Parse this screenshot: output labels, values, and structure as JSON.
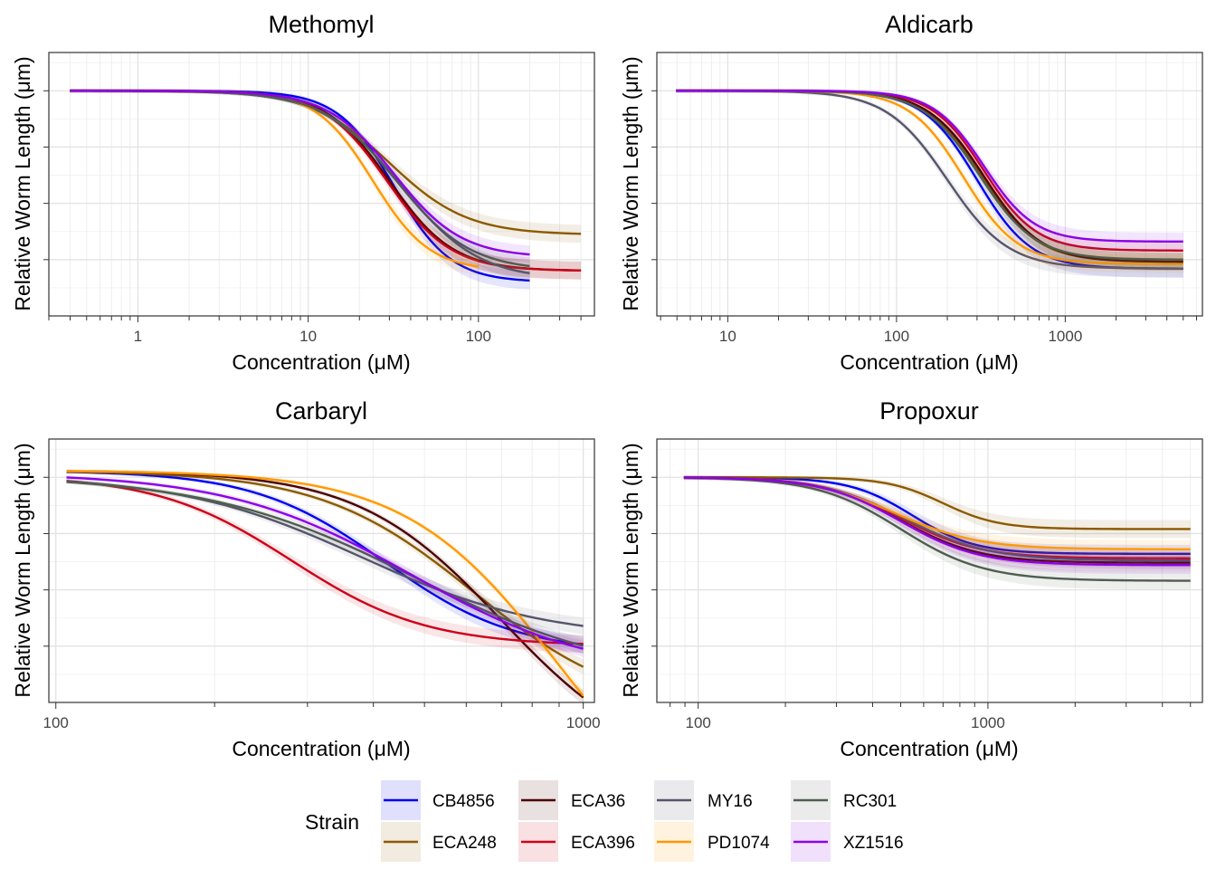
{
  "chart_data": {
    "type": "line",
    "legend": {
      "title": "Strain",
      "position": "bottom",
      "strains": [
        {
          "name": "CB4856",
          "color": "#0000ee"
        },
        {
          "name": "ECA248",
          "color": "#8b5a00"
        },
        {
          "name": "ECA36",
          "color": "#4a0000"
        },
        {
          "name": "ECA396",
          "color": "#cc0018"
        },
        {
          "name": "MY16",
          "color": "#55556b"
        },
        {
          "name": "PD1074",
          "color": "#ff9900"
        },
        {
          "name": "RC301",
          "color": "#4f5e4f"
        },
        {
          "name": "XZ1516",
          "color": "#8b00e8"
        }
      ]
    },
    "panels": [
      {
        "title": "Methomyl",
        "xlabel": "Concentration (μM)",
        "ylabel": "Relative Worm Length (μm)",
        "x_scale": "log10",
        "xlim": [
          0.3,
          480
        ],
        "ylim": [
          0,
          1.17
        ],
        "x_ticks": [
          1,
          10,
          100
        ],
        "x_tick_labels": [
          "1",
          "10",
          "100"
        ],
        "y_ticks": [
          0.25,
          0.5,
          0.75,
          1.0
        ],
        "curves": [
          {
            "strain": "CB4856",
            "top": 1,
            "bottom": 0.15,
            "ec50": 32,
            "hill": 2.6,
            "xmax": 200
          },
          {
            "strain": "ECA248",
            "top": 1,
            "bottom": 0.36,
            "ec50": 30,
            "hill": 1.9,
            "xmax": 400
          },
          {
            "strain": "ECA36",
            "top": 1,
            "bottom": 0.2,
            "ec50": 30,
            "hill": 2.3,
            "xmax": 400
          },
          {
            "strain": "ECA396",
            "top": 1,
            "bottom": 0.2,
            "ec50": 29,
            "hill": 2.3,
            "xmax": 400
          },
          {
            "strain": "MY16",
            "top": 1,
            "bottom": 0.16,
            "ec50": 35,
            "hill": 1.9,
            "xmax": 200
          },
          {
            "strain": "PD1074",
            "top": 1,
            "bottom": 0.2,
            "ec50": 24,
            "hill": 2.6,
            "xmax": 100
          },
          {
            "strain": "RC301",
            "top": 1,
            "bottom": 0.2,
            "ec50": 33,
            "hill": 2.0,
            "xmax": 200
          },
          {
            "strain": "XZ1516",
            "top": 1,
            "bottom": 0.26,
            "ec50": 32,
            "hill": 2.2,
            "xmax": 200
          }
        ]
      },
      {
        "title": "Aldicarb",
        "xlabel": "Concentration (μM)",
        "ylabel": "Relative Worm Length (μm)",
        "x_scale": "log10",
        "xlim": [
          3.8,
          6500
        ],
        "ylim": [
          0,
          1.17
        ],
        "x_ticks": [
          10,
          100,
          1000
        ],
        "x_tick_labels": [
          "10",
          "100",
          "1000"
        ],
        "y_ticks": [
          0.25,
          0.5,
          0.75,
          1.0
        ],
        "curves": [
          {
            "strain": "CB4856",
            "top": 1,
            "bottom": 0.21,
            "ec50": 300,
            "hill": 2.7,
            "xmax": 5000
          },
          {
            "strain": "ECA248",
            "top": 1,
            "bottom": 0.24,
            "ec50": 320,
            "hill": 2.6,
            "xmax": 5000
          },
          {
            "strain": "ECA36",
            "top": 1,
            "bottom": 0.24,
            "ec50": 330,
            "hill": 2.6,
            "xmax": 5000
          },
          {
            "strain": "ECA396",
            "top": 1,
            "bottom": 0.29,
            "ec50": 330,
            "hill": 2.8,
            "xmax": 5000
          },
          {
            "strain": "MY16",
            "top": 1,
            "bottom": 0.21,
            "ec50": 200,
            "hill": 2.4,
            "xmax": 5000
          },
          {
            "strain": "PD1074",
            "top": 1,
            "bottom": 0.23,
            "ec50": 250,
            "hill": 2.7,
            "xmax": 5000
          },
          {
            "strain": "RC301",
            "top": 1,
            "bottom": 0.25,
            "ec50": 310,
            "hill": 2.6,
            "xmax": 5000
          },
          {
            "strain": "XZ1516",
            "top": 1,
            "bottom": 0.33,
            "ec50": 330,
            "hill": 2.9,
            "xmax": 5000
          }
        ]
      },
      {
        "title": "Carbaryl",
        "xlabel": "Concentration (μM)",
        "ylabel": "Relative Worm Length (μm)",
        "x_scale": "log10",
        "xlim": [
          97,
          1050
        ],
        "ylim": [
          0,
          1.17
        ],
        "x_ticks": [
          100,
          1000
        ],
        "x_tick_labels": [
          "100",
          "1000"
        ],
        "y_ticks": [
          0.25,
          0.5,
          0.75,
          1.0
        ],
        "curves": [
          {
            "strain": "CB4856",
            "top": 1.03,
            "bottom": 0.22,
            "ec50": 420,
            "hill": 3.5,
            "xmax": 1000
          },
          {
            "strain": "ECA248",
            "top": 1.03,
            "bottom": -0.05,
            "ec50": 620,
            "hill": 3.0,
            "xmax": 1000
          },
          {
            "strain": "ECA36",
            "top": 1.03,
            "bottom": -0.3,
            "ec50": 700,
            "hill": 3.2,
            "xmax": 1000
          },
          {
            "strain": "ECA396",
            "top": 1.01,
            "bottom": 0.25,
            "ec50": 280,
            "hill": 3.4,
            "xmax": 1000
          },
          {
            "strain": "MY16",
            "top": 1.01,
            "bottom": 0.28,
            "ec50": 380,
            "hill": 2.5,
            "xmax": 1000
          },
          {
            "strain": "PD1074",
            "top": 1.03,
            "bottom": -0.7,
            "ec50": 900,
            "hill": 3.0,
            "xmax": 1000
          },
          {
            "strain": "RC301",
            "top": 1.01,
            "bottom": 0.1,
            "ec50": 480,
            "hill": 2.2,
            "xmax": 1000
          },
          {
            "strain": "XZ1516",
            "top": 1.02,
            "bottom": 0.12,
            "ec50": 470,
            "hill": 2.5,
            "xmax": 1000
          }
        ]
      },
      {
        "title": "Propoxur",
        "xlabel": "Concentration (μM)",
        "ylabel": "Relative Worm Length (μm)",
        "x_scale": "log10",
        "xlim": [
          72,
          5500
        ],
        "ylim": [
          0,
          1.17
        ],
        "x_ticks": [
          100,
          1000
        ],
        "x_tick_labels": [
          "100",
          "1000"
        ],
        "y_ticks": [
          0.25,
          0.5,
          0.75,
          1.0
        ],
        "curves": [
          {
            "strain": "CB4856",
            "top": 1,
            "bottom": 0.66,
            "ec50": 550,
            "hill": 4.0,
            "xmax": 5000
          },
          {
            "strain": "ECA248",
            "top": 1,
            "bottom": 0.77,
            "ec50": 700,
            "hill": 4.5,
            "xmax": 5000
          },
          {
            "strain": "ECA36",
            "top": 1,
            "bottom": 0.62,
            "ec50": 500,
            "hill": 3.2,
            "xmax": 5000
          },
          {
            "strain": "ECA396",
            "top": 1,
            "bottom": 0.64,
            "ec50": 500,
            "hill": 3.2,
            "xmax": 5000
          },
          {
            "strain": "MY16",
            "top": 1,
            "bottom": 0.63,
            "ec50": 520,
            "hill": 3.0,
            "xmax": 5000
          },
          {
            "strain": "PD1074",
            "top": 1,
            "bottom": 0.68,
            "ec50": 480,
            "hill": 3.0,
            "xmax": 5000
          },
          {
            "strain": "RC301",
            "top": 1,
            "bottom": 0.54,
            "ec50": 500,
            "hill": 3.0,
            "xmax": 5000
          },
          {
            "strain": "XZ1516",
            "top": 1,
            "bottom": 0.61,
            "ec50": 500,
            "hill": 3.2,
            "xmax": 5000
          }
        ]
      }
    ]
  }
}
